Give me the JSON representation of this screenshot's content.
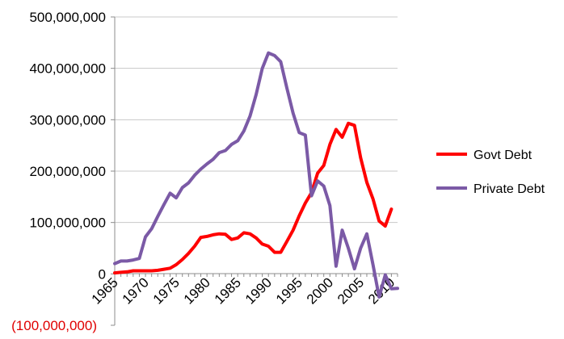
{
  "chart_data": {
    "type": "line",
    "title": "",
    "xlabel": "",
    "ylabel": "",
    "xlim": [
      1965,
      2011
    ],
    "ylim": [
      -100000000,
      500000000
    ],
    "x_ticks": [
      "1965",
      "1970",
      "1975",
      "1980",
      "1985",
      "1990",
      "1995",
      "2000",
      "2005",
      "2010"
    ],
    "y_ticks": [
      "500,000,000",
      "400,000,000",
      "300,000,000",
      "200,000,000",
      "100,000,000",
      "0",
      "(100,000,000)"
    ],
    "legend_position": "right",
    "x": [
      1965,
      1966,
      1967,
      1968,
      1969,
      1970,
      1971,
      1972,
      1973,
      1974,
      1975,
      1976,
      1977,
      1978,
      1979,
      1980,
      1981,
      1982,
      1983,
      1984,
      1985,
      1986,
      1987,
      1988,
      1989,
      1990,
      1991,
      1992,
      1993,
      1994,
      1995,
      1996,
      1997,
      1998,
      1999,
      2000,
      2001,
      2002,
      2003,
      2004,
      2005,
      2006,
      2007,
      2008,
      2009,
      2010,
      2011
    ],
    "series": [
      {
        "name": "Govt Debt",
        "color": "#ff0000",
        "values": [
          2000000,
          3000000,
          4000000,
          6000000,
          6000000,
          6000000,
          6000000,
          7000000,
          9000000,
          11000000,
          18000000,
          28000000,
          40000000,
          54000000,
          71000000,
          73000000,
          76000000,
          78000000,
          77000000,
          67000000,
          70000000,
          80000000,
          78000000,
          70000000,
          58000000,
          54000000,
          42000000,
          42000000,
          63000000,
          85000000,
          113000000,
          138000000,
          158000000,
          196000000,
          211000000,
          252000000,
          281000000,
          266000000,
          293000000,
          289000000,
          226000000,
          178000000,
          146000000,
          103000000,
          93000000,
          126000000,
          null
        ]
      },
      {
        "name": "Private Debt",
        "color": "#7b5aa6",
        "values": [
          20000000,
          25000000,
          25000000,
          27000000,
          30000000,
          72000000,
          88000000,
          112000000,
          135000000,
          157000000,
          148000000,
          168000000,
          177000000,
          192000000,
          204000000,
          214000000,
          223000000,
          236000000,
          240000000,
          252000000,
          259000000,
          278000000,
          307000000,
          349000000,
          400000000,
          430000000,
          425000000,
          413000000,
          362000000,
          313000000,
          275000000,
          270000000,
          152000000,
          181000000,
          171000000,
          133000000,
          15000000,
          85000000,
          50000000,
          10000000,
          50000000,
          78000000,
          18000000,
          -45000000,
          -2000000,
          -29000000,
          -28000000
        ]
      }
    ]
  }
}
